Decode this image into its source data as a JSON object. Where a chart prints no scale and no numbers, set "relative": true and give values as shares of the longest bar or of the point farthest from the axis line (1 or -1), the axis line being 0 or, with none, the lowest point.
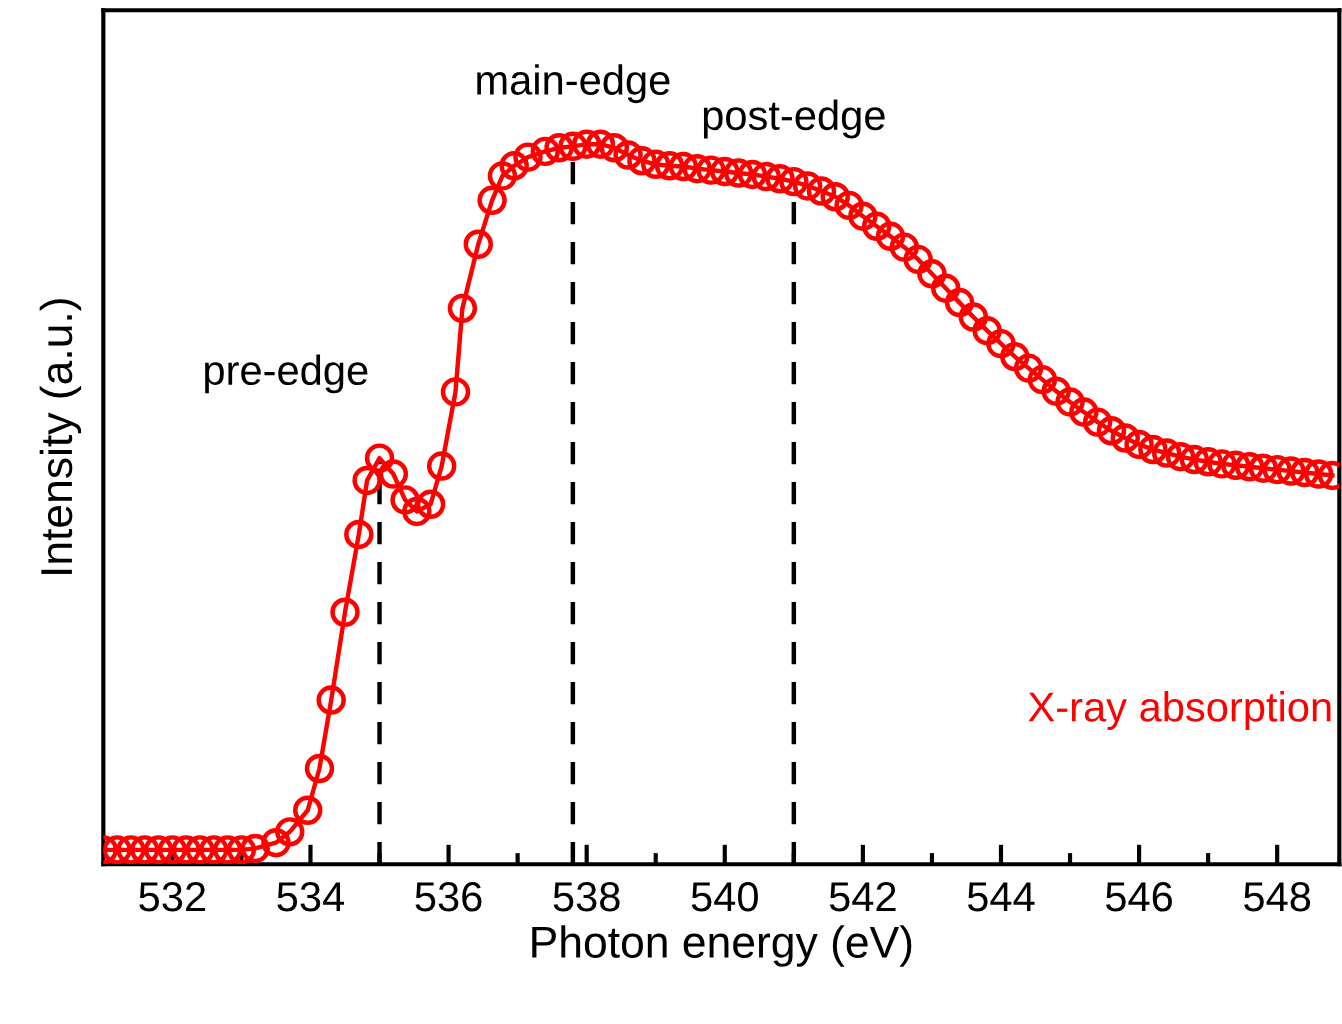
{
  "chart_data": {
    "type": "line",
    "relative": true,
    "xlabel": "Photon energy (eV)",
    "ylabel": "Intensity (a.u.)",
    "xlim": [
      531,
      548.9
    ],
    "xticks": [
      532,
      {
        "value": 533,
        "label": null
      },
      534,
      {
        "value": 535,
        "label": null
      },
      536,
      {
        "value": 537,
        "label": null
      },
      538,
      {
        "value": 539,
        "label": null
      },
      540,
      {
        "value": 541,
        "label": null
      },
      542,
      {
        "value": 543,
        "label": null
      },
      544,
      {
        "value": 545,
        "label": null
      },
      546,
      {
        "value": 547,
        "label": null
      },
      548
    ],
    "marker": "circle",
    "line_style": "solid",
    "grid": false,
    "legend": false,
    "series": [
      {
        "name": "X-ray absorption",
        "color": "#ff0000",
        "x": [
          531.0,
          531.2,
          531.4,
          531.6,
          531.8,
          532.0,
          532.2,
          532.4,
          532.6,
          532.8,
          533.0,
          533.2,
          533.5,
          533.7,
          533.96,
          534.13,
          534.3,
          534.5,
          534.7,
          534.82,
          535.0,
          535.2,
          535.37,
          535.54,
          535.74,
          535.9,
          536.1,
          536.2,
          536.43,
          536.63,
          536.78,
          536.95,
          537.15,
          537.4,
          537.6,
          537.8,
          538.0,
          538.2,
          538.4,
          538.6,
          538.8,
          539.0,
          539.2,
          539.4,
          539.6,
          539.8,
          540.0,
          540.2,
          540.4,
          540.6,
          540.8,
          541.0,
          541.2,
          541.4,
          541.6,
          541.8,
          542.0,
          542.2,
          542.4,
          542.6,
          542.8,
          543.0,
          543.2,
          543.4,
          543.6,
          543.8,
          544.0,
          544.2,
          544.4,
          544.6,
          544.8,
          545.0,
          545.2,
          545.4,
          545.6,
          545.8,
          546.0,
          546.2,
          546.4,
          546.6,
          546.8,
          547.0,
          547.2,
          547.4,
          547.6,
          547.8,
          548.0,
          548.2,
          548.4,
          548.6,
          548.8
        ],
        "values": [
          0.02,
          0.02,
          0.02,
          0.02,
          0.02,
          0.02,
          0.02,
          0.02,
          0.02,
          0.02,
          0.02,
          0.022,
          0.03,
          0.045,
          0.075,
          0.133,
          0.228,
          0.35,
          0.458,
          0.533,
          0.564,
          0.542,
          0.506,
          0.49,
          0.5,
          0.553,
          0.656,
          0.772,
          0.861,
          0.922,
          0.956,
          0.97,
          0.982,
          0.99,
          0.995,
          0.997,
          1.0,
          1.0,
          0.995,
          0.985,
          0.977,
          0.972,
          0.97,
          0.969,
          0.966,
          0.964,
          0.962,
          0.96,
          0.958,
          0.955,
          0.952,
          0.948,
          0.942,
          0.935,
          0.927,
          0.915,
          0.9,
          0.886,
          0.872,
          0.857,
          0.84,
          0.82,
          0.8,
          0.78,
          0.76,
          0.741,
          0.723,
          0.705,
          0.689,
          0.673,
          0.657,
          0.642,
          0.628,
          0.614,
          0.602,
          0.592,
          0.583,
          0.576,
          0.571,
          0.566,
          0.562,
          0.559,
          0.556,
          0.554,
          0.552,
          0.55,
          0.548,
          0.546,
          0.544,
          0.542,
          0.54
        ]
      }
    ],
    "ref_lines": [
      {
        "axis": "x",
        "value": 535,
        "color": "#000000",
        "line_style": "dashed",
        "label": "pre-edge"
      },
      {
        "axis": "x",
        "value": 537.8,
        "color": "#000000",
        "line_style": "dashed",
        "label": "main-edge"
      },
      {
        "axis": "x",
        "value": 541,
        "color": "#000000",
        "line_style": "dashed",
        "label": "post-edge"
      }
    ]
  }
}
